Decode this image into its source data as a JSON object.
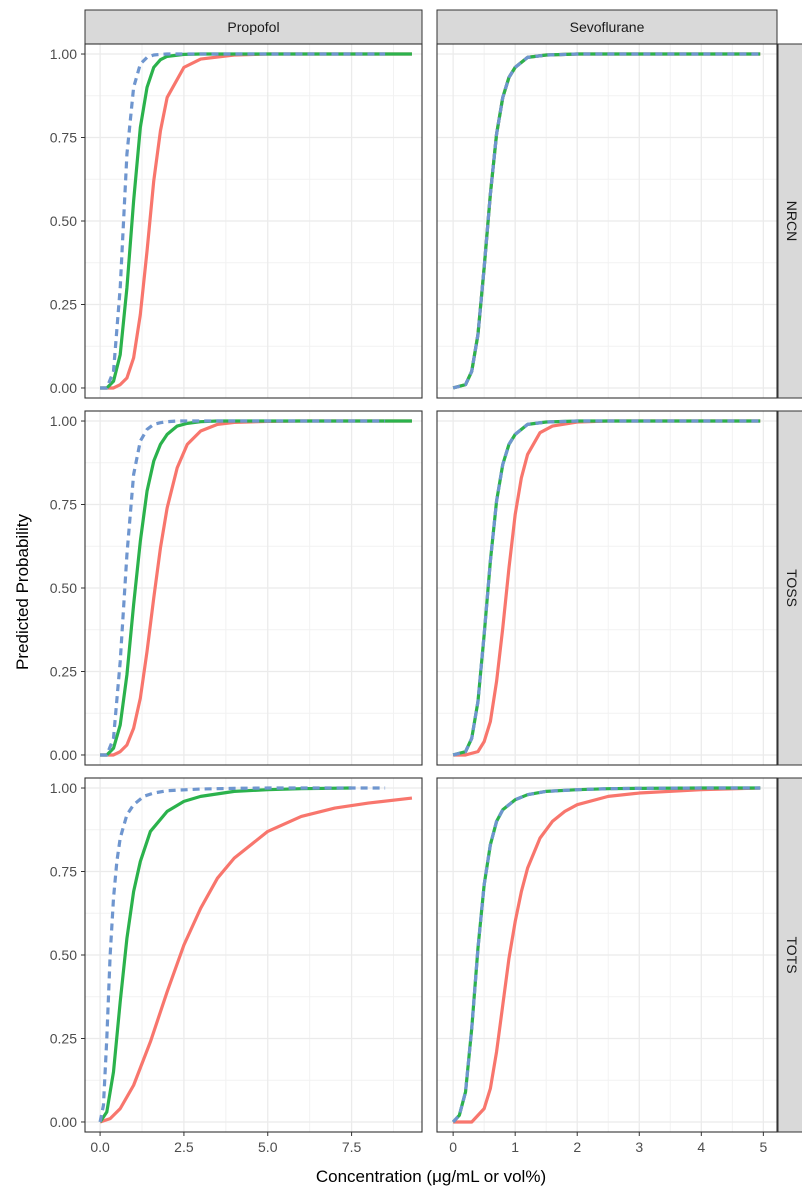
{
  "chart_data": {
    "type": "line",
    "xlabel": "Concentration (μg/mL or vol%)",
    "ylabel": "Predicted Probability",
    "col_strips": [
      "Propofol",
      "Sevoflurane"
    ],
    "row_strips": [
      "NRCN",
      "TOSS",
      "TOTS"
    ],
    "ylim": [
      -0.03,
      1.03
    ],
    "yticks": [
      0,
      0.25,
      0.5,
      0.75,
      1.0
    ],
    "ytick_labels": [
      "0.00",
      "0.25",
      "0.50",
      "0.75",
      "1.00"
    ],
    "columns": [
      {
        "xlim": [
          -0.45,
          9.6
        ],
        "xticks": [
          0,
          2.5,
          5.0,
          7.5
        ],
        "xtick_labels": [
          "0.0",
          "2.5",
          "5.0",
          "7.5"
        ],
        "x_minor": [
          1.25,
          3.75,
          6.25,
          8.75
        ]
      },
      {
        "xlim": [
          -0.26,
          5.22
        ],
        "xticks": [
          0,
          1,
          2,
          3,
          4,
          5
        ],
        "xtick_labels": [
          "0",
          "1",
          "2",
          "3",
          "4",
          "5"
        ],
        "x_minor": [
          0.5,
          1.5,
          2.5,
          3.5,
          4.5
        ]
      }
    ],
    "grid": true,
    "legend": "none",
    "series_styles": [
      {
        "color": "#F8766D",
        "dash": "solid"
      },
      {
        "color": "#2BB24C",
        "dash": "solid"
      },
      {
        "color": "#6F96CF",
        "dash": "dashed"
      }
    ],
    "panels": [
      {
        "row": "NRCN",
        "col": "Propofol",
        "series": [
          {
            "x": [
              0.0,
              0.2,
              0.4,
              0.6,
              0.8,
              1.0,
              1.2,
              1.4,
              1.6,
              1.8,
              2.0,
              2.5,
              3.0,
              4.0,
              5.0,
              6.0,
              7.5,
              9.3
            ],
            "y": [
              0.0,
              0.0,
              0.0,
              0.01,
              0.03,
              0.09,
              0.22,
              0.41,
              0.62,
              0.77,
              0.87,
              0.96,
              0.985,
              0.997,
              1.0,
              1.0,
              1.0,
              1.0
            ]
          },
          {
            "x": [
              0.0,
              0.2,
              0.4,
              0.6,
              0.8,
              1.0,
              1.2,
              1.4,
              1.6,
              1.8,
              2.0,
              2.5,
              3.0,
              4.0,
              5.0,
              6.0,
              7.5,
              9.3
            ],
            "y": [
              0.0,
              0.0,
              0.02,
              0.1,
              0.3,
              0.56,
              0.78,
              0.9,
              0.96,
              0.983,
              0.993,
              0.999,
              1.0,
              1.0,
              1.0,
              1.0,
              1.0,
              1.0
            ]
          },
          {
            "x": [
              0.0,
              0.2,
              0.4,
              0.6,
              0.8,
              1.0,
              1.2,
              1.4,
              1.6,
              1.8,
              2.0,
              2.5,
              3.0,
              4.0,
              5.0,
              6.0,
              7.5,
              8.5
            ],
            "y": [
              0.0,
              0.0,
              0.05,
              0.3,
              0.7,
              0.9,
              0.97,
              0.99,
              0.997,
              0.999,
              1.0,
              1.0,
              1.0,
              1.0,
              1.0,
              1.0,
              1.0,
              1.0
            ]
          }
        ]
      },
      {
        "row": "NRCN",
        "col": "Sevoflurane",
        "series": [
          {
            "x": [
              0.0,
              0.2,
              0.3,
              0.4,
              0.5,
              0.6,
              0.7,
              0.8,
              0.9,
              1.0,
              1.2,
              1.5,
              2.0,
              3.0,
              4.0,
              4.95
            ],
            "y": [
              0.0,
              0.01,
              0.05,
              0.16,
              0.36,
              0.58,
              0.76,
              0.87,
              0.93,
              0.96,
              0.99,
              0.997,
              1.0,
              1.0,
              1.0,
              1.0
            ]
          },
          {
            "x": [
              0.0,
              0.2,
              0.3,
              0.4,
              0.5,
              0.6,
              0.7,
              0.8,
              0.9,
              1.0,
              1.2,
              1.5,
              2.0,
              3.0,
              4.0,
              4.95
            ],
            "y": [
              0.0,
              0.01,
              0.05,
              0.16,
              0.36,
              0.58,
              0.76,
              0.87,
              0.93,
              0.96,
              0.99,
              0.997,
              1.0,
              1.0,
              1.0,
              1.0
            ]
          },
          {
            "x": [
              0.0,
              0.2,
              0.3,
              0.4,
              0.5,
              0.6,
              0.7,
              0.8,
              0.9,
              1.0,
              1.2,
              1.5,
              2.0,
              3.0,
              4.0,
              4.95
            ],
            "y": [
              0.0,
              0.01,
              0.05,
              0.16,
              0.36,
              0.58,
              0.76,
              0.87,
              0.93,
              0.96,
              0.99,
              0.997,
              1.0,
              1.0,
              1.0,
              1.0
            ]
          }
        ]
      },
      {
        "row": "TOSS",
        "col": "Propofol",
        "series": [
          {
            "x": [
              0.0,
              0.2,
              0.4,
              0.6,
              0.8,
              1.0,
              1.2,
              1.4,
              1.6,
              1.8,
              2.0,
              2.3,
              2.6,
              3.0,
              3.5,
              4.0,
              5.0,
              6.0,
              7.5,
              9.3
            ],
            "y": [
              0.0,
              0.0,
              0.0,
              0.01,
              0.03,
              0.08,
              0.17,
              0.31,
              0.47,
              0.62,
              0.74,
              0.86,
              0.93,
              0.97,
              0.99,
              0.996,
              0.999,
              1.0,
              1.0,
              1.0
            ]
          },
          {
            "x": [
              0.0,
              0.2,
              0.4,
              0.6,
              0.8,
              1.0,
              1.2,
              1.4,
              1.6,
              1.8,
              2.0,
              2.3,
              2.6,
              3.0,
              3.5,
              4.0,
              5.0,
              6.0,
              7.5,
              9.3
            ],
            "y": [
              0.0,
              0.0,
              0.02,
              0.09,
              0.24,
              0.45,
              0.64,
              0.79,
              0.88,
              0.93,
              0.96,
              0.985,
              0.993,
              0.998,
              1.0,
              1.0,
              1.0,
              1.0,
              1.0,
              1.0
            ]
          },
          {
            "x": [
              0.0,
              0.2,
              0.4,
              0.6,
              0.8,
              1.0,
              1.2,
              1.4,
              1.6,
              1.8,
              2.0,
              2.3,
              2.6,
              3.0,
              3.5,
              4.0,
              5.0,
              6.0,
              7.5,
              8.5
            ],
            "y": [
              0.0,
              0.0,
              0.05,
              0.28,
              0.6,
              0.84,
              0.94,
              0.975,
              0.99,
              0.995,
              0.998,
              1.0,
              1.0,
              1.0,
              1.0,
              1.0,
              1.0,
              1.0,
              1.0,
              1.0
            ]
          }
        ]
      },
      {
        "row": "TOSS",
        "col": "Sevoflurane",
        "series": [
          {
            "x": [
              0.0,
              0.2,
              0.4,
              0.5,
              0.6,
              0.7,
              0.8,
              0.9,
              1.0,
              1.1,
              1.2,
              1.4,
              1.6,
              2.0,
              2.5,
              3.0,
              4.0,
              4.95
            ],
            "y": [
              0.0,
              0.0,
              0.01,
              0.04,
              0.1,
              0.22,
              0.38,
              0.56,
              0.72,
              0.83,
              0.9,
              0.965,
              0.985,
              0.997,
              1.0,
              1.0,
              1.0,
              1.0
            ]
          },
          {
            "x": [
              0.0,
              0.2,
              0.3,
              0.4,
              0.5,
              0.6,
              0.7,
              0.8,
              0.9,
              1.0,
              1.2,
              1.5,
              2.0,
              3.0,
              4.0,
              4.95
            ],
            "y": [
              0.0,
              0.01,
              0.05,
              0.16,
              0.36,
              0.58,
              0.76,
              0.87,
              0.93,
              0.96,
              0.99,
              0.997,
              1.0,
              1.0,
              1.0,
              1.0
            ]
          },
          {
            "x": [
              0.0,
              0.2,
              0.3,
              0.4,
              0.5,
              0.6,
              0.7,
              0.8,
              0.9,
              1.0,
              1.2,
              1.5,
              2.0,
              3.0,
              4.0,
              4.95
            ],
            "y": [
              0.0,
              0.01,
              0.05,
              0.16,
              0.36,
              0.58,
              0.76,
              0.87,
              0.93,
              0.96,
              0.99,
              0.997,
              1.0,
              1.0,
              1.0,
              1.0
            ]
          }
        ]
      },
      {
        "row": "TOTS",
        "col": "Propofol",
        "series": [
          {
            "x": [
              0.0,
              0.3,
              0.6,
              1.0,
              1.5,
              2.0,
              2.5,
              3.0,
              3.5,
              4.0,
              5.0,
              6.0,
              7.0,
              8.0,
              9.3
            ],
            "y": [
              0.0,
              0.01,
              0.04,
              0.11,
              0.24,
              0.39,
              0.53,
              0.64,
              0.73,
              0.79,
              0.87,
              0.915,
              0.94,
              0.955,
              0.97
            ]
          },
          {
            "x": [
              0.0,
              0.2,
              0.4,
              0.6,
              0.8,
              1.0,
              1.2,
              1.5,
              2.0,
              2.5,
              3.0,
              4.0,
              5.0,
              6.0,
              7.5
            ],
            "y": [
              0.0,
              0.03,
              0.15,
              0.36,
              0.55,
              0.69,
              0.78,
              0.87,
              0.93,
              0.96,
              0.975,
              0.99,
              0.995,
              0.998,
              1.0
            ]
          },
          {
            "x": [
              0.0,
              0.1,
              0.2,
              0.3,
              0.4,
              0.5,
              0.6,
              0.8,
              1.0,
              1.3,
              1.6,
              2.0,
              3.0,
              4.0,
              5.0,
              6.0,
              7.5,
              8.5
            ],
            "y": [
              0.0,
              0.05,
              0.25,
              0.5,
              0.67,
              0.78,
              0.85,
              0.92,
              0.95,
              0.975,
              0.985,
              0.992,
              0.997,
              0.999,
              1.0,
              1.0,
              1.0,
              1.0
            ]
          }
        ]
      },
      {
        "row": "TOTS",
        "col": "Sevoflurane",
        "series": [
          {
            "x": [
              0.0,
              0.3,
              0.5,
              0.6,
              0.7,
              0.8,
              0.9,
              1.0,
              1.1,
              1.2,
              1.4,
              1.6,
              1.8,
              2.0,
              2.5,
              3.0,
              4.0,
              4.95
            ],
            "y": [
              0.0,
              0.0,
              0.04,
              0.1,
              0.21,
              0.35,
              0.49,
              0.6,
              0.69,
              0.76,
              0.85,
              0.9,
              0.93,
              0.95,
              0.975,
              0.985,
              0.995,
              1.0
            ]
          },
          {
            "x": [
              0.0,
              0.1,
              0.2,
              0.3,
              0.4,
              0.5,
              0.6,
              0.7,
              0.8,
              1.0,
              1.2,
              1.5,
              2.0,
              2.5,
              3.0,
              4.0,
              4.95
            ],
            "y": [
              0.0,
              0.02,
              0.09,
              0.28,
              0.52,
              0.71,
              0.83,
              0.9,
              0.935,
              0.965,
              0.98,
              0.99,
              0.995,
              0.998,
              0.999,
              1.0,
              1.0
            ]
          },
          {
            "x": [
              0.0,
              0.1,
              0.2,
              0.3,
              0.4,
              0.5,
              0.6,
              0.7,
              0.8,
              1.0,
              1.2,
              1.5,
              2.0,
              2.5,
              3.0,
              4.0,
              4.95
            ],
            "y": [
              0.0,
              0.02,
              0.09,
              0.28,
              0.52,
              0.71,
              0.83,
              0.9,
              0.935,
              0.965,
              0.98,
              0.99,
              0.995,
              0.998,
              0.999,
              1.0,
              1.0
            ]
          }
        ]
      }
    ]
  }
}
